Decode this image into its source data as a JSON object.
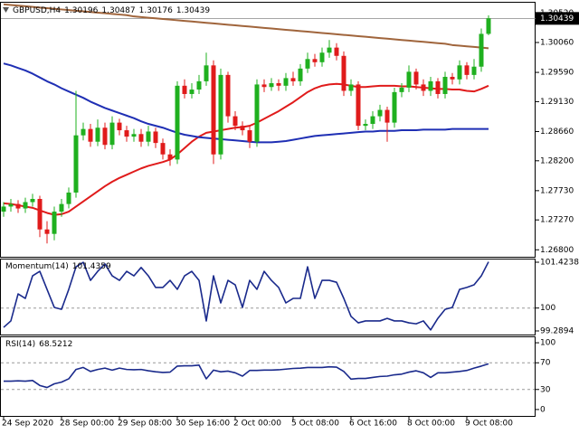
{
  "chart_data": [
    {
      "type": "candlestick",
      "title": "GBPUSD,H4",
      "categories": [
        "24 Sep 2020",
        null,
        null,
        null,
        null,
        null,
        null,
        null,
        "28 Sep 00:00",
        null,
        null,
        null,
        null,
        null,
        null,
        null,
        "29 Sep 08:00",
        null,
        null,
        null,
        null,
        null,
        null,
        null,
        "30 Sep 16:00",
        null,
        null,
        null,
        null,
        null,
        null,
        null,
        "2 Oct 00:00",
        null,
        null,
        null,
        null,
        null,
        null,
        null,
        "5 Oct 08:00",
        null,
        null,
        null,
        null,
        null,
        null,
        null,
        "6 Oct 16:00",
        null,
        null,
        null,
        null,
        null,
        null,
        null,
        "8 Oct 00:00",
        null,
        null,
        null,
        null,
        null,
        null,
        null,
        "9 Oct 08:00",
        null,
        null,
        null
      ],
      "open": [
        1.274,
        1.2748,
        1.2752,
        1.2745,
        1.2755,
        1.276,
        1.2712,
        1.2705,
        1.274,
        1.2752,
        1.277,
        1.286,
        1.287,
        1.285,
        1.2872,
        1.2845,
        1.288,
        1.2868,
        1.2858,
        1.2862,
        1.285,
        1.2866,
        1.2848,
        1.283,
        1.2822,
        1.2938,
        1.2925,
        1.2932,
        1.2945,
        1.297,
        1.283,
        1.2955,
        1.289,
        1.2875,
        1.2868,
        1.285,
        1.294,
        1.2936,
        1.2942,
        1.2938,
        1.295,
        1.2945,
        1.2965,
        1.298,
        1.2975,
        1.299,
        1.2998,
        1.2985,
        1.293,
        1.294,
        1.2875,
        1.2878,
        1.289,
        1.29,
        1.288,
        1.2928,
        1.2935,
        1.296,
        1.294,
        1.293,
        1.2945,
        1.2925,
        1.2952,
        1.2948,
        1.297,
        1.2955,
        1.2968,
        1.30196
      ],
      "high": [
        1.2755,
        1.276,
        1.2758,
        1.2762,
        1.2768,
        1.2765,
        1.2725,
        1.2748,
        1.276,
        1.2778,
        1.293,
        1.288,
        1.2878,
        1.2885,
        1.288,
        1.289,
        1.2886,
        1.2875,
        1.287,
        1.287,
        1.2875,
        1.2872,
        1.2855,
        1.2838,
        1.2945,
        1.2948,
        1.2942,
        1.2955,
        1.299,
        1.2978,
        1.2965,
        1.296,
        1.2898,
        1.2882,
        1.2875,
        1.2948,
        1.2948,
        1.295,
        1.2948,
        1.2958,
        1.296,
        1.2972,
        1.299,
        1.2988,
        1.2998,
        1.301,
        1.3005,
        1.2992,
        1.2948,
        1.2945,
        1.2885,
        1.2898,
        1.2908,
        1.2905,
        1.2935,
        1.2942,
        1.297,
        1.2965,
        1.2948,
        1.2952,
        1.295,
        1.296,
        1.2958,
        1.2978,
        1.2975,
        1.298,
        1.3028,
        1.30487
      ],
      "low": [
        1.2732,
        1.274,
        1.2738,
        1.2738,
        1.2748,
        1.27,
        1.269,
        1.2695,
        1.2732,
        1.2745,
        1.2762,
        1.2852,
        1.2842,
        1.2843,
        1.2838,
        1.2838,
        1.286,
        1.285,
        1.285,
        1.2842,
        1.2843,
        1.284,
        1.2822,
        1.2812,
        1.2815,
        1.2918,
        1.2918,
        1.2925,
        1.2938,
        1.2815,
        1.2822,
        1.288,
        1.2868,
        1.286,
        1.284,
        1.2842,
        1.2928,
        1.293,
        1.293,
        1.293,
        1.2938,
        1.2938,
        1.2958,
        1.2968,
        1.2968,
        1.2982,
        1.2978,
        1.2922,
        1.2922,
        1.2868,
        1.2868,
        1.287,
        1.2882,
        1.285,
        1.2872,
        1.292,
        1.2928,
        1.2932,
        1.2922,
        1.2922,
        1.2918,
        1.2918,
        1.294,
        1.294,
        1.2948,
        1.2948,
        1.296,
        1.30176
      ],
      "close": [
        1.2748,
        1.2752,
        1.2745,
        1.2755,
        1.276,
        1.2712,
        1.2705,
        1.274,
        1.2752,
        1.277,
        1.286,
        1.287,
        1.285,
        1.2872,
        1.2845,
        1.288,
        1.2868,
        1.2858,
        1.2862,
        1.285,
        1.2866,
        1.2848,
        1.283,
        1.2822,
        1.2938,
        1.2925,
        1.2932,
        1.2945,
        1.297,
        1.283,
        1.2955,
        1.289,
        1.2875,
        1.2868,
        1.285,
        1.294,
        1.2936,
        1.2942,
        1.2938,
        1.295,
        1.2945,
        1.2965,
        1.298,
        1.2975,
        1.299,
        1.2998,
        1.2985,
        1.293,
        1.294,
        1.2875,
        1.2878,
        1.289,
        1.29,
        1.288,
        1.2928,
        1.2935,
        1.296,
        1.294,
        1.293,
        1.2945,
        1.2925,
        1.2952,
        1.2948,
        1.297,
        1.2955,
        1.2968,
        1.30196,
        1.30439
      ],
      "up_color": "#1fb01f",
      "down_color": "#e01b1b",
      "series": [
        {
          "color": "#a0653c",
          "values": [
            1.3066,
            1.3065,
            1.3064,
            1.3063,
            1.3062,
            1.3061,
            1.306,
            1.3059,
            1.3058,
            1.3057,
            1.3056,
            1.3055,
            1.3054,
            1.3053,
            1.3052,
            1.3051,
            1.305,
            1.3049,
            1.3047,
            1.3046,
            1.3045,
            1.3044,
            1.3043,
            1.3042,
            1.3041,
            1.304,
            1.3039,
            1.3038,
            1.3037,
            1.3036,
            1.3035,
            1.3034,
            1.3033,
            1.3032,
            1.3031,
            1.303,
            1.3029,
            1.3028,
            1.3027,
            1.3026,
            1.3025,
            1.3024,
            1.3023,
            1.3022,
            1.3021,
            1.302,
            1.3019,
            1.3018,
            1.3017,
            1.3016,
            1.3015,
            1.3014,
            1.3013,
            1.3012,
            1.3011,
            1.301,
            1.3009,
            1.3008,
            1.3007,
            1.3006,
            1.3005,
            1.3004,
            1.3002,
            1.3001,
            1.3,
            1.2999,
            1.2998,
            1.2997
          ]
        },
        {
          "color": "#e01b1b",
          "values": [
            1.2753,
            1.2752,
            1.275,
            1.2748,
            1.2746,
            1.2742,
            1.2738,
            1.2735,
            1.2736,
            1.274,
            1.2748,
            1.2756,
            1.2764,
            1.2772,
            1.278,
            1.2787,
            1.2793,
            1.2798,
            1.2803,
            1.2808,
            1.2812,
            1.2815,
            1.2818,
            1.2822,
            1.283,
            1.284,
            1.285,
            1.2858,
            1.2864,
            1.2866,
            1.2868,
            1.287,
            1.2872,
            1.2873,
            1.2875,
            1.288,
            1.2886,
            1.2892,
            1.2898,
            1.2905,
            1.2912,
            1.292,
            1.2928,
            1.2934,
            1.2938,
            1.294,
            1.2941,
            1.294,
            1.2938,
            1.2936,
            1.2936,
            1.2937,
            1.2938,
            1.2938,
            1.2938,
            1.2937,
            1.2937,
            1.2936,
            1.2935,
            1.2934,
            1.2933,
            1.2933,
            1.2932,
            1.2932,
            1.293,
            1.2929,
            1.2933,
            1.2938
          ]
        },
        {
          "color": "#1f2fb4",
          "values": [
            1.2973,
            1.297,
            1.2966,
            1.2962,
            1.2957,
            1.2951,
            1.2945,
            1.294,
            1.2934,
            1.2929,
            1.2924,
            1.2919,
            1.2913,
            1.2908,
            1.2903,
            1.2899,
            1.2895,
            1.2891,
            1.2887,
            1.2882,
            1.2878,
            1.2875,
            1.2872,
            1.2868,
            1.2864,
            1.2861,
            1.2859,
            1.2857,
            1.2856,
            1.2855,
            1.2854,
            1.2853,
            1.2852,
            1.2851,
            1.285,
            1.2849,
            1.2849,
            1.2849,
            1.285,
            1.2851,
            1.2853,
            1.2855,
            1.2857,
            1.2859,
            1.286,
            1.2861,
            1.2862,
            1.2863,
            1.2864,
            1.2865,
            1.2866,
            1.2866,
            1.2867,
            1.2867,
            1.2867,
            1.2868,
            1.2868,
            1.2868,
            1.2869,
            1.2869,
            1.2869,
            1.2869,
            1.287,
            1.287,
            1.287,
            1.287,
            1.287,
            1.287
          ]
        }
      ],
      "ylim": [
        1.2669,
        1.307
      ],
      "yticks": [
        {
          "value": 1.3052,
          "label": "1.30520"
        },
        {
          "value": 1.3006,
          "label": "1.30060"
        },
        {
          "value": 1.2959,
          "label": "1.29590"
        },
        {
          "value": 1.2913,
          "label": "1.29130"
        },
        {
          "value": 1.2866,
          "label": "1.28660"
        },
        {
          "value": 1.282,
          "label": "1.28200"
        },
        {
          "value": 1.2773,
          "label": "1.27730"
        },
        {
          "value": 1.2727,
          "label": "1.27270"
        },
        {
          "value": 1.268,
          "label": "1.26800"
        }
      ],
      "grid": false
    },
    {
      "type": "line",
      "series": [
        {
          "name": "Momentum(14)",
          "color": "#1a2a8c",
          "values": [
            99.4,
            99.6,
            100.44,
            100.3,
            101.0,
            101.14,
            100.58,
            100.02,
            99.96,
            100.58,
            101.28,
            101.42,
            100.86,
            101.14,
            101.37,
            101.0,
            100.86,
            101.14,
            101.0,
            101.26,
            101.0,
            100.64,
            100.64,
            100.86,
            100.58,
            101.0,
            101.14,
            100.86,
            99.6,
            101.0,
            100.16,
            100.86,
            100.72,
            100.02,
            100.86,
            100.58,
            101.14,
            100.86,
            100.64,
            100.16,
            100.3,
            100.3,
            101.28,
            100.3,
            100.86,
            100.86,
            100.8,
            100.3,
            99.74,
            99.54,
            99.6,
            99.6,
            99.6,
            99.68,
            99.6,
            99.6,
            99.54,
            99.51,
            99.6,
            99.32,
            99.68,
            99.96,
            100.02,
            100.58,
            100.64,
            100.72,
            101.0,
            101.4359
          ]
        }
      ],
      "ylim": [
        99.177,
        101.536
      ],
      "yticks": [
        101.4238,
        100,
        99.2894
      ],
      "grid": true
    },
    {
      "type": "line",
      "series": [
        {
          "name": "RSI(14)",
          "color": "#1a2a8c",
          "values": [
            42.5,
            42.5,
            43.0,
            42.5,
            43.5,
            36.0,
            33.0,
            38.5,
            41.0,
            46.0,
            60.0,
            63.0,
            57.0,
            60.0,
            62.0,
            59.0,
            62.0,
            60.0,
            59.5,
            60.0,
            58.0,
            56.5,
            55.5,
            56.0,
            65.0,
            65.5,
            65.5,
            66.5,
            46.0,
            59.0,
            56.5,
            57.5,
            55.0,
            50.0,
            58.5,
            58.5,
            59.0,
            59.0,
            59.5,
            60.5,
            61.5,
            62.0,
            63.0,
            63.0,
            63.0,
            64.0,
            63.5,
            57.0,
            45.5,
            46.5,
            46.5,
            48.0,
            49.5,
            50.0,
            52.0,
            53.0,
            56.0,
            58.0,
            55.0,
            48.0,
            55.0,
            55.0,
            56.0,
            57.0,
            58.5,
            62.0,
            65.0,
            68.5212
          ]
        }
      ],
      "ylim": [
        -9.6,
        109.6
      ],
      "yticks": [
        100,
        70,
        30,
        0
      ],
      "grid": true
    }
  ]
}
